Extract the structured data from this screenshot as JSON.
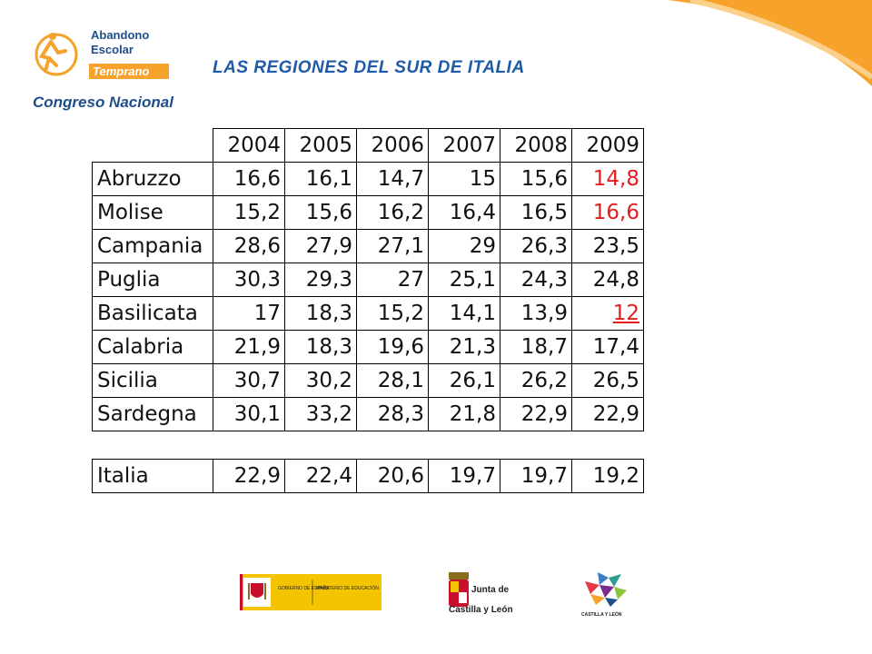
{
  "header": {
    "logo_lines": [
      "Abandono",
      "Escolar",
      "Temprano",
      "Congreso Nacional"
    ],
    "title": "LAS REGIONES DEL SUR DE ITALIA"
  },
  "table": {
    "years": [
      "2004",
      "2005",
      "2006",
      "2007",
      "2008",
      "2009"
    ],
    "rows": [
      {
        "region": "Abruzzo",
        "values": [
          "16,6",
          "16,1",
          "14,7",
          "15",
          "15,6",
          "14,8"
        ]
      },
      {
        "region": "Molise",
        "values": [
          "15,2",
          "15,6",
          "16,2",
          "16,4",
          "16,5",
          "16,6"
        ]
      },
      {
        "region": "Campania",
        "values": [
          "28,6",
          "27,9",
          "27,1",
          "29",
          "26,3",
          "23,5"
        ]
      },
      {
        "region": "Puglia",
        "values": [
          "30,3",
          "29,3",
          "27",
          "25,1",
          "24,3",
          "24,8"
        ]
      },
      {
        "region": "Basilicata",
        "values": [
          "17",
          "18,3",
          "15,2",
          "14,1",
          "13,9",
          "12"
        ]
      },
      {
        "region": "Calabria",
        "values": [
          "21,9",
          "18,3",
          "19,6",
          "21,3",
          "18,7",
          "17,4"
        ]
      },
      {
        "region": "Sicilia",
        "values": [
          "30,7",
          "30,2",
          "28,1",
          "26,1",
          "26,2",
          "26,5"
        ]
      },
      {
        "region": "Sardegna",
        "values": [
          "30,1",
          "33,2",
          "28,3",
          "21,8",
          "22,9",
          "22,9"
        ]
      }
    ],
    "total": {
      "region": "Italia",
      "values": [
        "22,9",
        "22,4",
        "20,6",
        "19,7",
        "19,7",
        "19,2"
      ]
    },
    "highlight_color": "#e01e1e"
  },
  "footer": {
    "ministerio": {
      "left": "GOBIERNO DE ESPAÑA",
      "right": "MINISTERIO DE EDUCACIÓN"
    },
    "junta": [
      "Junta de",
      "Castilla y León"
    ],
    "cyl": "CASTILLA Y LEÓN"
  }
}
